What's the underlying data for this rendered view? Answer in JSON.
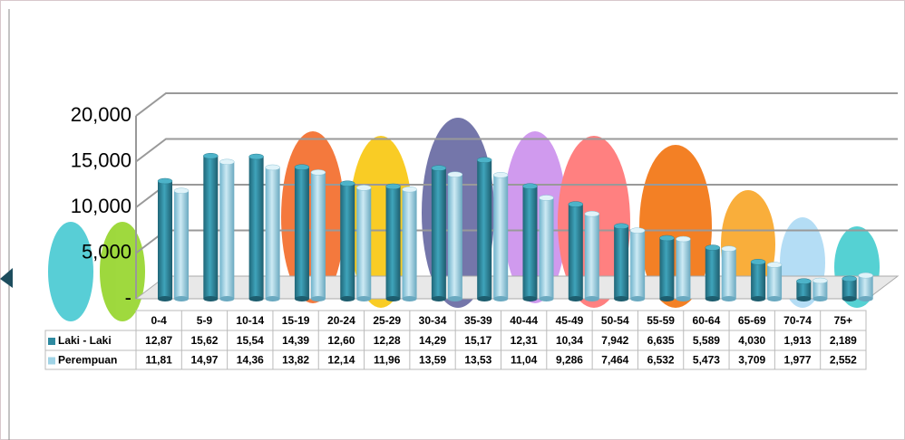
{
  "chart_data": {
    "type": "bar",
    "categories": [
      "0-4",
      "5-9",
      "10-14",
      "15-19",
      "20-24",
      "25-29",
      "30-34",
      "35-39",
      "40-44",
      "45-49",
      "50-54",
      "55-59",
      "60-64",
      "65-69",
      "70-74",
      "75+"
    ],
    "series": [
      {
        "name": "Laki - Laki",
        "color": "#2e8aa0",
        "values": [
          12870,
          15620,
          15540,
          14390,
          12600,
          12280,
          14290,
          15170,
          12310,
          10340,
          7942,
          6635,
          5589,
          4030,
          1913,
          2189
        ],
        "value_labels": [
          "12,87",
          "15,62",
          "15,54",
          "14,39",
          "12,60",
          "12,28",
          "14,29",
          "15,17",
          "12,31",
          "10,34",
          "7,942",
          "6,635",
          "5,589",
          "4,030",
          "1,913",
          "2,189"
        ]
      },
      {
        "name": "Perempuan",
        "color": "#9fd3e6",
        "values": [
          11810,
          14970,
          14360,
          13820,
          12140,
          11960,
          13590,
          13530,
          11040,
          9286,
          7464,
          6532,
          5473,
          3709,
          1977,
          2552
        ],
        "value_labels": [
          "11,81",
          "14,97",
          "14,36",
          "13,82",
          "12,14",
          "11,96",
          "13,59",
          "13,53",
          "11,04",
          "9,286",
          "7,464",
          "6,532",
          "5,473",
          "3,709",
          "1,977",
          "2,552"
        ]
      }
    ],
    "ylim": [
      0,
      20000
    ],
    "yticks": [
      {
        "value": 0,
        "label": "-"
      },
      {
        "value": 5000,
        "label": "5,000"
      },
      {
        "value": 10000,
        "label": "10,000"
      },
      {
        "value": 15000,
        "label": "15,000"
      },
      {
        "value": 20000,
        "label": "20,000"
      }
    ],
    "grid": true
  }
}
